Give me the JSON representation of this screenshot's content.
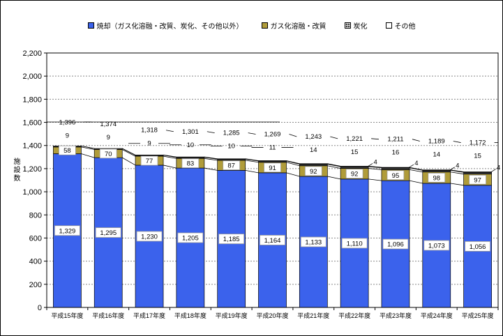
{
  "chart_data": {
    "type": "bar",
    "stacked": true,
    "title": "",
    "ylabel": "施設数",
    "xlabel": "",
    "ylim": [
      0,
      2200
    ],
    "ytick_step": 200,
    "ytick_labels": [
      "0",
      "200",
      "400",
      "600",
      "800",
      "1,000",
      "1,200",
      "1,400",
      "1,600",
      "1,800",
      "2,000",
      "2,200"
    ],
    "grid": true,
    "legend_position": "top",
    "categories": [
      "平成15年度",
      "平成16年度",
      "平成17年度",
      "平成18年度",
      "平成19年度",
      "平成20年度",
      "平成21年度",
      "平成22年度",
      "平成23年度",
      "平成24年度",
      "平成25年度"
    ],
    "series": [
      {
        "name": "焼却（ガス化溶融・改質、炭化、その他以外）",
        "color": "#3b62ec",
        "values": [
          1329,
          1295,
          1230,
          1205,
          1185,
          1164,
          1133,
          1110,
          1096,
          1073,
          1056
        ],
        "labels": [
          "1,329",
          "1,295",
          "1,230",
          "1,205",
          "1,185",
          "1,164",
          "1,133",
          "1,110",
          "1,096",
          "1,073",
          "1,056"
        ]
      },
      {
        "name": "ガス化溶融・改質",
        "color": "#b09c3a",
        "values": [
          58,
          70,
          77,
          83,
          87,
          91,
          92,
          92,
          95,
          98,
          97
        ],
        "labels": [
          "58",
          "70",
          "77",
          "83",
          "87",
          "91",
          "92",
          "92",
          "95",
          "98",
          "97"
        ]
      },
      {
        "name": "炭化",
        "color": "#3a3a3a",
        "values": [
          9,
          9,
          9,
          10,
          10,
          11,
          14,
          15,
          16,
          14,
          15
        ],
        "labels": [
          "9",
          "9",
          "9",
          "10",
          "10",
          "11",
          "14",
          "15",
          "16",
          "14",
          "15"
        ]
      },
      {
        "name": "その他",
        "color": "#ffffff",
        "values": [
          0,
          0,
          2,
          3,
          3,
          3,
          4,
          4,
          4,
          4,
          4
        ],
        "labels": [
          "",
          "",
          "",
          "",
          "",
          "",
          "",
          "4",
          "4",
          "4",
          "4"
        ]
      }
    ],
    "totals": {
      "values": [
        1396,
        1374,
        1318,
        1301,
        1285,
        1269,
        1243,
        1221,
        1211,
        1189,
        1172
      ],
      "labels": [
        "1,396",
        "1,374",
        "1,318",
        "1,301",
        "1,285",
        "1,269",
        "1,243",
        "1,221",
        "1,211",
        "1,189",
        "1,172"
      ]
    }
  },
  "style": {
    "grid_color": "#888888",
    "axis_color": "#000000",
    "label_box_border": "#999999",
    "label_box_fill": "#ffffff"
  }
}
